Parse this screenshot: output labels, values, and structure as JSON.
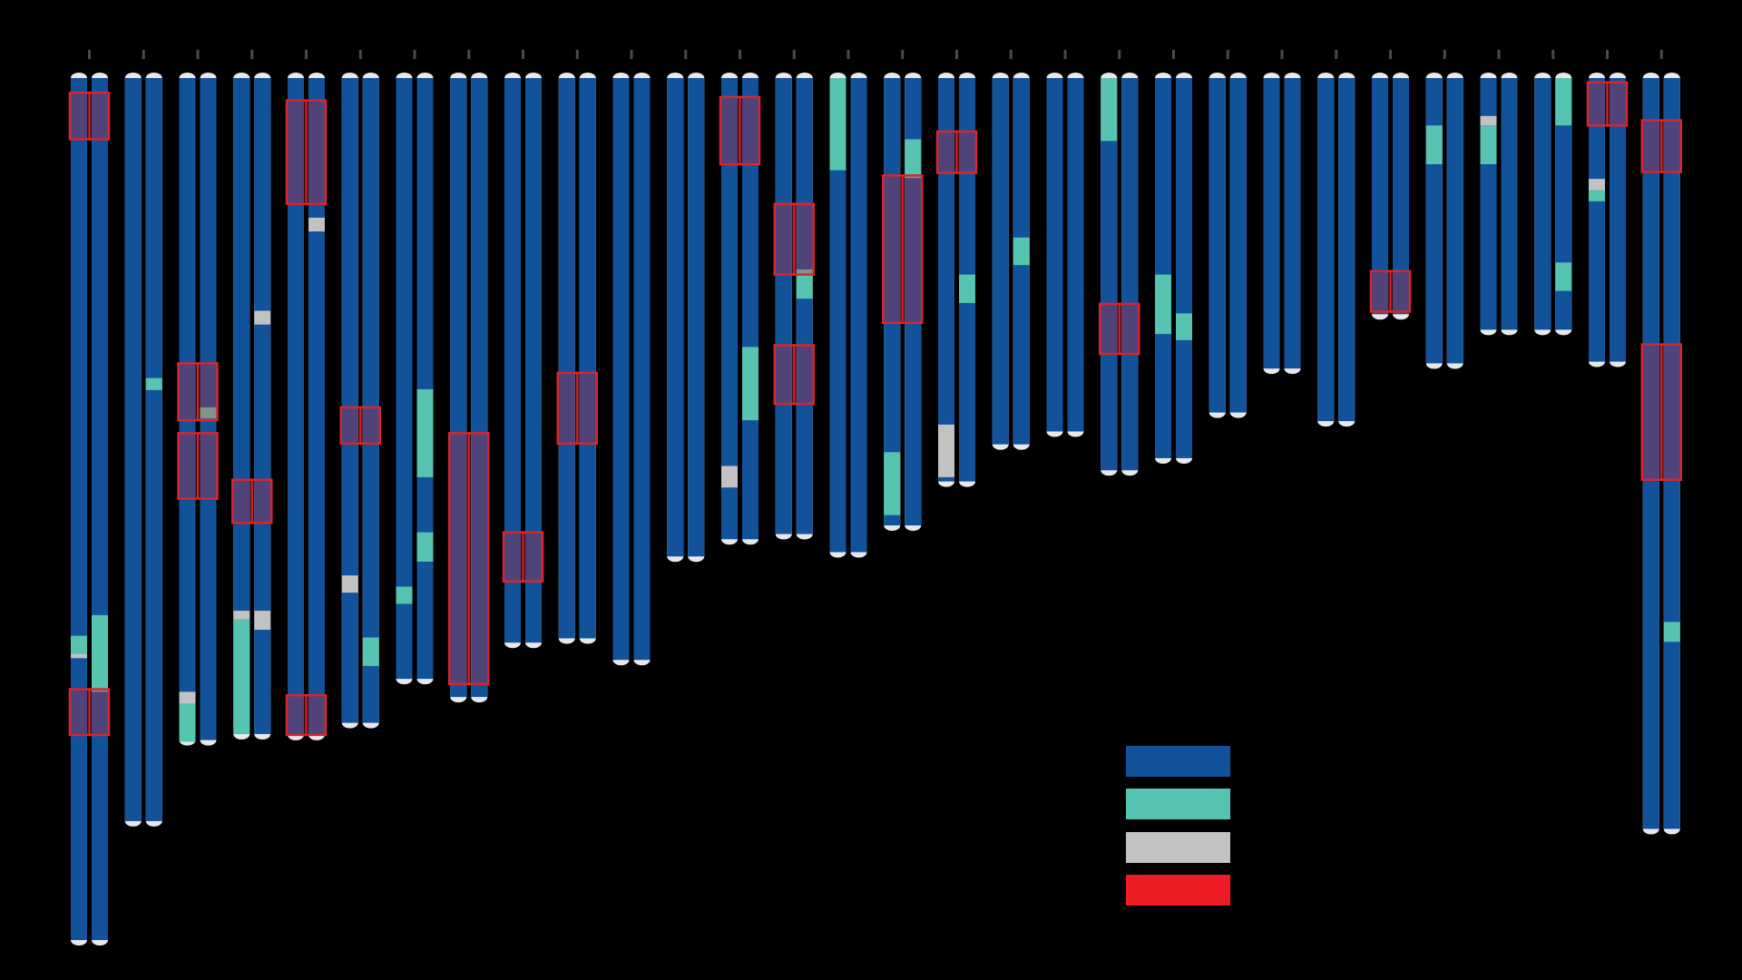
{
  "colors": {
    "background": "#000000",
    "chrom": "#12529a",
    "teal": "#57c3b1",
    "gray": "#c2c2c2",
    "red": "#ee1c25",
    "tip": "#e8e8ea",
    "tick": "#4a4a4a"
  },
  "legend": {
    "entries": [
      {
        "color": "#12529a"
      },
      {
        "color": "#57c3b1"
      },
      {
        "color": "#c2c2c2"
      },
      {
        "color": "#ee1c25"
      }
    ]
  },
  "chromosomes": [
    {
      "len": 1.0,
      "a": [
        {
          "t": "teal",
          "s": 0.647,
          "e": 0.668
        },
        {
          "t": "gray",
          "s": 0.668,
          "e": 0.673
        }
      ],
      "b": [
        {
          "t": "teal",
          "s": 0.623,
          "e": 0.712
        }
      ],
      "box": [
        {
          "s": 0.017,
          "e": 0.071
        },
        {
          "s": 0.709,
          "e": 0.762
        }
      ]
    },
    {
      "len": 0.862,
      "a": [],
      "b": [
        {
          "t": "teal",
          "s": 0.348,
          "e": 0.362
        }
      ],
      "box": []
    },
    {
      "len": 0.768,
      "a": [
        {
          "t": "gray",
          "s": 0.712,
          "e": 0.726
        },
        {
          "t": "teal",
          "s": 0.726,
          "e": 0.77
        }
      ],
      "b": [
        {
          "t": "teal",
          "s": 0.382,
          "e": 0.395
        }
      ],
      "box": [
        {
          "s": 0.331,
          "e": 0.397
        },
        {
          "s": 0.412,
          "e": 0.488
        }
      ]
    },
    {
      "len": 0.761,
      "a": [
        {
          "t": "gray",
          "s": 0.618,
          "e": 0.628
        },
        {
          "t": "teal",
          "s": 0.628,
          "e": 0.761
        }
      ],
      "b": [
        {
          "t": "gray",
          "s": 0.27,
          "e": 0.286
        },
        {
          "t": "gray",
          "s": 0.618,
          "e": 0.64
        }
      ],
      "box": [
        {
          "s": 0.466,
          "e": 0.516
        }
      ]
    },
    {
      "len": 0.762,
      "a": [],
      "b": [
        {
          "t": "gray",
          "s": 0.162,
          "e": 0.178
        }
      ],
      "box": [
        {
          "s": 0.026,
          "e": 0.146
        },
        {
          "s": 0.716,
          "e": 0.762
        }
      ]
    },
    {
      "len": 0.748,
      "a": [
        {
          "t": "gray",
          "s": 0.577,
          "e": 0.597
        }
      ],
      "b": [
        {
          "t": "teal",
          "s": 0.649,
          "e": 0.682
        }
      ],
      "box": [
        {
          "s": 0.382,
          "e": 0.424
        }
      ]
    },
    {
      "len": 0.697,
      "a": [
        {
          "t": "teal",
          "s": 0.59,
          "e": 0.61
        }
      ],
      "b": [
        {
          "t": "teal",
          "s": 0.361,
          "e": 0.463
        },
        {
          "t": "teal",
          "s": 0.527,
          "e": 0.561
        }
      ],
      "box": []
    },
    {
      "len": 0.718,
      "a": [],
      "b": [],
      "box": [
        {
          "s": 0.412,
          "e": 0.703
        }
      ]
    },
    {
      "len": 0.655,
      "a": [],
      "b": [],
      "box": [
        {
          "s": 0.527,
          "e": 0.584
        }
      ]
    },
    {
      "len": 0.65,
      "a": [],
      "b": [],
      "box": [
        {
          "s": 0.342,
          "e": 0.424
        }
      ]
    },
    {
      "len": 0.675,
      "a": [],
      "b": [],
      "box": []
    },
    {
      "len": 0.555,
      "a": [],
      "b": [],
      "box": []
    },
    {
      "len": 0.535,
      "a": [
        {
          "t": "gray",
          "s": 0.45,
          "e": 0.475
        }
      ],
      "b": [
        {
          "t": "teal",
          "s": 0.312,
          "e": 0.397
        }
      ],
      "box": [
        {
          "s": 0.022,
          "e": 0.1
        }
      ]
    },
    {
      "len": 0.529,
      "a": [],
      "b": [
        {
          "t": "teal",
          "s": 0.222,
          "e": 0.256
        }
      ],
      "box": [
        {
          "s": 0.146,
          "e": 0.228
        },
        {
          "s": 0.31,
          "e": 0.378
        }
      ]
    },
    {
      "len": 0.55,
      "a": [
        {
          "t": "teal",
          "s": 0.0,
          "e": 0.107
        }
      ],
      "b": [],
      "box": []
    },
    {
      "len": 0.519,
      "a": [
        {
          "t": "teal",
          "s": 0.434,
          "e": 0.507
        }
      ],
      "b": [
        {
          "t": "teal",
          "s": 0.071,
          "e": 0.116
        }
      ],
      "box": [
        {
          "s": 0.113,
          "e": 0.284
        }
      ]
    },
    {
      "len": 0.468,
      "a": [
        {
          "t": "gray",
          "s": 0.402,
          "e": 0.463
        }
      ],
      "b": [
        {
          "t": "teal",
          "s": 0.228,
          "e": 0.261
        }
      ],
      "box": [
        {
          "s": 0.062,
          "e": 0.11
        }
      ]
    },
    {
      "len": 0.425,
      "a": [],
      "b": [
        {
          "t": "teal",
          "s": 0.185,
          "e": 0.217
        }
      ],
      "box": []
    },
    {
      "len": 0.41,
      "a": [],
      "b": [],
      "box": []
    },
    {
      "len": 0.455,
      "a": [
        {
          "t": "teal",
          "s": 0.0,
          "e": 0.073
        }
      ],
      "b": [],
      "box": [
        {
          "s": 0.262,
          "e": 0.32
        }
      ]
    },
    {
      "len": 0.441,
      "a": [
        {
          "t": "teal",
          "s": 0.228,
          "e": 0.297
        }
      ],
      "b": [
        {
          "t": "teal",
          "s": 0.273,
          "e": 0.304
        }
      ],
      "box": []
    },
    {
      "len": 0.388,
      "a": [],
      "b": [],
      "box": []
    },
    {
      "len": 0.337,
      "a": [],
      "b": [],
      "box": []
    },
    {
      "len": 0.398,
      "a": [],
      "b": [],
      "box": []
    },
    {
      "len": 0.274,
      "a": [],
      "b": [],
      "box": [
        {
          "s": 0.224,
          "e": 0.271
        }
      ]
    },
    {
      "len": 0.331,
      "a": [
        {
          "t": "teal",
          "s": 0.055,
          "e": 0.1
        }
      ],
      "b": [],
      "box": []
    },
    {
      "len": 0.292,
      "a": [
        {
          "t": "gray",
          "s": 0.044,
          "e": 0.055
        },
        {
          "t": "teal",
          "s": 0.055,
          "e": 0.1
        }
      ],
      "b": [],
      "box": []
    },
    {
      "len": 0.292,
      "a": [],
      "b": [
        {
          "t": "teal",
          "s": 0.0,
          "e": 0.055
        },
        {
          "t": "teal",
          "s": 0.214,
          "e": 0.247
        }
      ],
      "box": []
    },
    {
      "len": 0.329,
      "a": [
        {
          "t": "gray",
          "s": 0.117,
          "e": 0.13
        },
        {
          "t": "teal",
          "s": 0.13,
          "e": 0.143
        }
      ],
      "b": [],
      "box": [
        {
          "s": 0.005,
          "e": 0.055
        }
      ]
    },
    {
      "len": 0.871,
      "a": [],
      "b": [
        {
          "t": "teal",
          "s": 0.631,
          "e": 0.654
        }
      ],
      "box": [
        {
          "s": 0.049,
          "e": 0.109
        },
        {
          "s": 0.309,
          "e": 0.466
        }
      ]
    }
  ]
}
